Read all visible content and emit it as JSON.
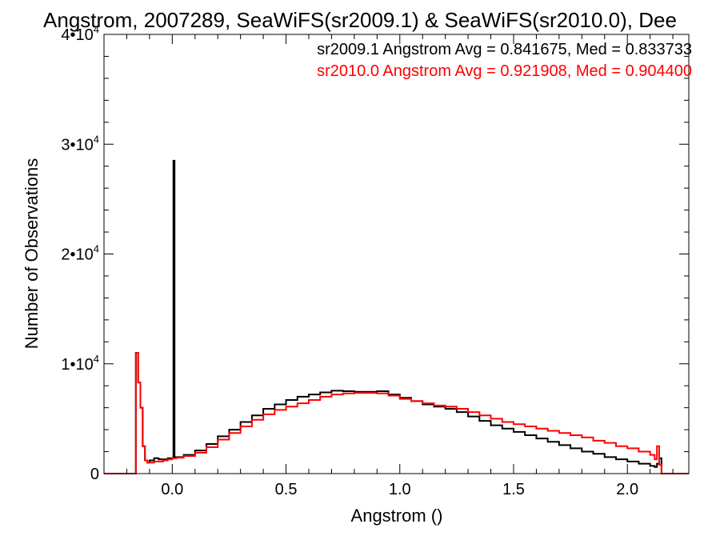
{
  "chart_data": {
    "type": "line",
    "title": "Angstrom, 2007289, SeaWiFS(sr2009.1) & SeaWiFS(sr2010.0), Dee",
    "xlabel": "Angstrom ()",
    "ylabel": "Number of Observations",
    "xlim": [
      -0.3,
      2.27
    ],
    "ylim": [
      0,
      40000
    ],
    "x_ticks": [
      {
        "value": 0.0,
        "label": "0.0"
      },
      {
        "value": 0.5,
        "label": "0.5"
      },
      {
        "value": 1.0,
        "label": "1.0"
      },
      {
        "value": 1.5,
        "label": "1.5"
      },
      {
        "value": 2.0,
        "label": "2.0"
      }
    ],
    "y_ticks": [
      {
        "value": 0,
        "base": "0",
        "exp": ""
      },
      {
        "value": 10000,
        "base": "1•10",
        "exp": "4"
      },
      {
        "value": 20000,
        "base": "2•10",
        "exp": "4"
      },
      {
        "value": 30000,
        "base": "3•10",
        "exp": "4"
      },
      {
        "value": 40000,
        "base": "4•10",
        "exp": "4"
      }
    ],
    "grid": false,
    "annotations": [
      {
        "text": "sr2009.1 Angstrom Avg = 0.841675, Med = 0.833733",
        "color": "#000000"
      },
      {
        "text": "sr2010.0 Angstrom Avg = 0.921908, Med = 0.904400",
        "color": "#ff0000"
      }
    ],
    "series": [
      {
        "color": "#000000",
        "x": [
          -0.3,
          -0.17,
          -0.16,
          -0.15,
          -0.14,
          -0.13,
          -0.12,
          -0.11,
          -0.1,
          -0.08,
          -0.06,
          -0.04,
          -0.02,
          0.0,
          0.005,
          0.01,
          0.02,
          0.05,
          0.1,
          0.15,
          0.2,
          0.25,
          0.3,
          0.35,
          0.4,
          0.45,
          0.5,
          0.55,
          0.6,
          0.65,
          0.7,
          0.75,
          0.8,
          0.85,
          0.9,
          0.95,
          1.0,
          1.05,
          1.1,
          1.15,
          1.2,
          1.25,
          1.3,
          1.35,
          1.4,
          1.45,
          1.5,
          1.55,
          1.6,
          1.65,
          1.7,
          1.75,
          1.8,
          1.85,
          1.9,
          1.95,
          2.0,
          2.05,
          2.1,
          2.12,
          2.13,
          2.14,
          2.15,
          2.27
        ],
        "y": [
          0,
          0,
          11000,
          8300,
          6000,
          2500,
          1200,
          1000,
          1200,
          1400,
          1300,
          1300,
          1400,
          1400,
          28500,
          1500,
          1500,
          1700,
          2100,
          2700,
          3400,
          4000,
          4700,
          5300,
          5900,
          6300,
          6700,
          7000,
          7200,
          7400,
          7550,
          7500,
          7450,
          7450,
          7500,
          7200,
          6900,
          6600,
          6300,
          6100,
          5900,
          5600,
          5200,
          4800,
          4400,
          4100,
          3800,
          3500,
          3200,
          2900,
          2600,
          2300,
          2000,
          1800,
          1500,
          1300,
          1100,
          900,
          700,
          600,
          900,
          1400,
          0,
          0
        ]
      },
      {
        "color": "#ff0000",
        "x": [
          -0.3,
          -0.17,
          -0.16,
          -0.15,
          -0.14,
          -0.13,
          -0.12,
          -0.11,
          -0.1,
          -0.08,
          -0.06,
          -0.04,
          -0.02,
          0.0,
          0.02,
          0.05,
          0.1,
          0.15,
          0.2,
          0.25,
          0.3,
          0.35,
          0.4,
          0.45,
          0.5,
          0.55,
          0.6,
          0.65,
          0.7,
          0.75,
          0.8,
          0.85,
          0.9,
          0.95,
          1.0,
          1.05,
          1.1,
          1.15,
          1.2,
          1.25,
          1.3,
          1.35,
          1.4,
          1.45,
          1.5,
          1.55,
          1.6,
          1.65,
          1.7,
          1.75,
          1.8,
          1.85,
          1.9,
          1.95,
          2.0,
          2.05,
          2.1,
          2.12,
          2.13,
          2.14,
          2.15,
          2.27
        ],
        "y": [
          0,
          0,
          11000,
          8300,
          6000,
          2500,
          1200,
          1000,
          1000,
          1100,
          1100,
          1200,
          1300,
          1400,
          1450,
          1600,
          1900,
          2400,
          3100,
          3700,
          4300,
          4900,
          5400,
          5800,
          6100,
          6400,
          6700,
          7000,
          7200,
          7300,
          7350,
          7350,
          7300,
          7100,
          6800,
          6600,
          6400,
          6200,
          6100,
          5900,
          5600,
          5300,
          5000,
          4700,
          4500,
          4300,
          4100,
          3900,
          3700,
          3500,
          3300,
          3000,
          2800,
          2500,
          2300,
          2000,
          1700,
          1300,
          2500,
          800,
          0,
          0
        ]
      }
    ]
  }
}
